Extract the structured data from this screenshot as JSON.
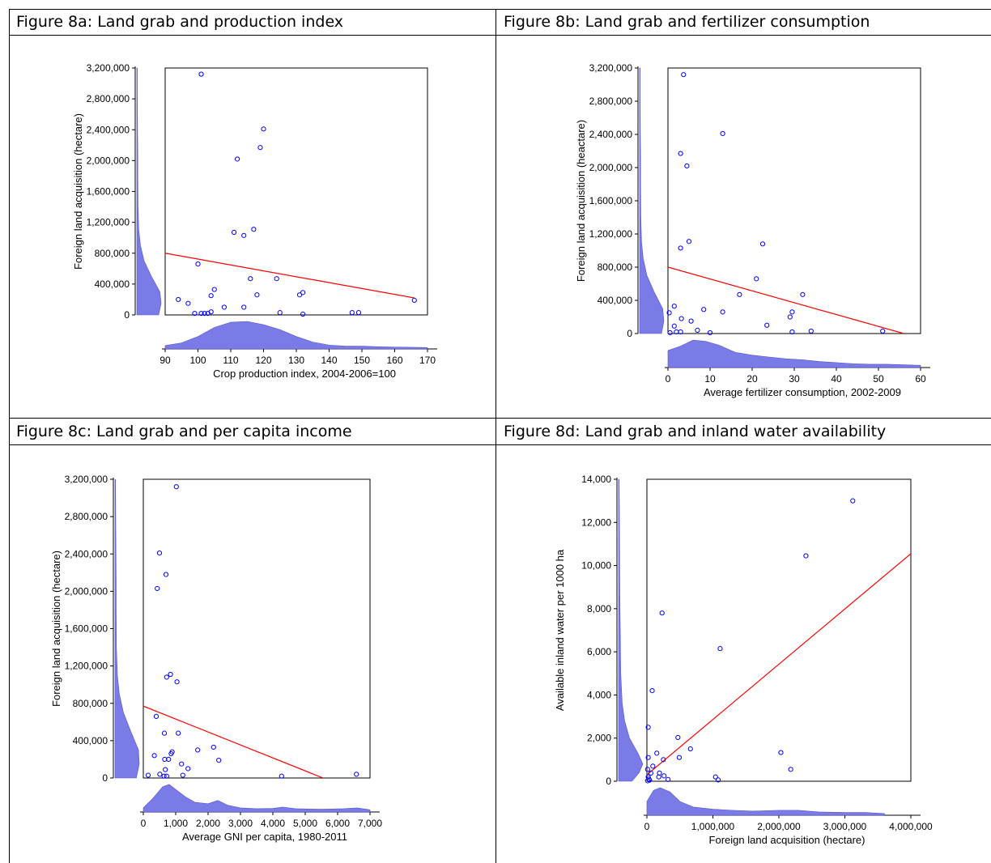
{
  "colors": {
    "point": "#0000ff",
    "fit": "#ff0000",
    "density": "#7b7be8",
    "density_stroke": "#5555cc",
    "axis": "#000000"
  },
  "chart_data": [
    {
      "id": "fig8a",
      "type": "scatter",
      "title": "Figure 8a: Land grab and production index",
      "xlabel": "Crop production index, 2004-2006=100",
      "ylabel": "Foreign land acquisition (hectare)",
      "xlim": [
        90,
        170
      ],
      "ylim": [
        0,
        3200000
      ],
      "xticks": [
        90,
        100,
        110,
        120,
        130,
        140,
        150,
        160,
        170
      ],
      "yticks": [
        0,
        400000,
        800000,
        1200000,
        1600000,
        2000000,
        2400000,
        2800000,
        3200000
      ],
      "xtick_labels": [
        "90",
        "100",
        "110",
        "120",
        "130",
        "140",
        "150",
        "160",
        "170"
      ],
      "ytick_labels": [
        "0",
        "400,000",
        "800,000",
        "1,200,000",
        "1,600,000",
        "2,000,000",
        "2,400,000",
        "2,800,000",
        "3,200,000"
      ],
      "points": [
        [
          101,
          3120000
        ],
        [
          120,
          2410000
        ],
        [
          119,
          2170000
        ],
        [
          112,
          2020000
        ],
        [
          111,
          1070000
        ],
        [
          117,
          1110000
        ],
        [
          114,
          1030000
        ],
        [
          100,
          660000
        ],
        [
          116,
          470000
        ],
        [
          124,
          470000
        ],
        [
          105,
          330000
        ],
        [
          104,
          250000
        ],
        [
          118,
          260000
        ],
        [
          131,
          260000
        ],
        [
          132,
          290000
        ],
        [
          94,
          200000
        ],
        [
          97,
          150000
        ],
        [
          108,
          100000
        ],
        [
          114,
          100000
        ],
        [
          166,
          190000
        ],
        [
          99,
          20000
        ],
        [
          101,
          20000
        ],
        [
          102,
          20000
        ],
        [
          103,
          20000
        ],
        [
          104,
          40000
        ],
        [
          125,
          30000
        ],
        [
          132,
          10000
        ],
        [
          147,
          30000
        ],
        [
          149,
          30000
        ]
      ],
      "fit": [
        [
          90,
          800000
        ],
        [
          166,
          220000
        ]
      ],
      "x_density": [
        [
          90,
          0.12
        ],
        [
          95,
          0.22
        ],
        [
          100,
          0.45
        ],
        [
          105,
          0.78
        ],
        [
          110,
          0.97
        ],
        [
          115,
          1.0
        ],
        [
          120,
          0.88
        ],
        [
          125,
          0.7
        ],
        [
          130,
          0.45
        ],
        [
          135,
          0.25
        ],
        [
          140,
          0.14
        ],
        [
          145,
          0.1
        ],
        [
          150,
          0.1
        ],
        [
          155,
          0.08
        ],
        [
          160,
          0.07
        ],
        [
          165,
          0.06
        ],
        [
          170,
          0.05
        ]
      ],
      "y_density": [
        [
          0,
          0.9
        ],
        [
          150000,
          1.0
        ],
        [
          300000,
          0.95
        ],
        [
          500000,
          0.6
        ],
        [
          700000,
          0.3
        ],
        [
          900000,
          0.15
        ],
        [
          1100000,
          0.08
        ],
        [
          1400000,
          0.05
        ],
        [
          1800000,
          0.04
        ],
        [
          2100000,
          0.04
        ],
        [
          2400000,
          0.03
        ],
        [
          2800000,
          0.02
        ],
        [
          3200000,
          0.02
        ]
      ],
      "layout": "8a"
    },
    {
      "id": "fig8b",
      "type": "scatter",
      "title": "Figure 8b: Land grab and fertilizer consumption",
      "xlabel": "Average fertilizer consumption, 2002-2009",
      "ylabel": "Foreign land acquisition (heactare)",
      "xlim": [
        0,
        60
      ],
      "ylim": [
        0,
        3200000
      ],
      "xticks": [
        0,
        10,
        20,
        30,
        40,
        50,
        60
      ],
      "yticks": [
        0,
        400000,
        800000,
        1200000,
        1600000,
        2000000,
        2400000,
        2800000,
        3200000
      ],
      "xtick_labels": [
        "0",
        "10",
        "20",
        "30",
        "40",
        "50",
        "60"
      ],
      "ytick_labels": [
        "0",
        "400,000",
        "800,000",
        "1,200,000",
        "1,600,000",
        "2,000,000",
        "2,400,000",
        "2,800,000",
        "3,200,000"
      ],
      "points": [
        [
          3.7,
          3120000
        ],
        [
          13,
          2410000
        ],
        [
          3,
          2170000
        ],
        [
          4.5,
          2020000
        ],
        [
          5,
          1110000
        ],
        [
          22.5,
          1080000
        ],
        [
          3,
          1030000
        ],
        [
          21,
          660000
        ],
        [
          17,
          470000
        ],
        [
          32,
          470000
        ],
        [
          8.5,
          290000
        ],
        [
          13,
          260000
        ],
        [
          29.5,
          260000
        ],
        [
          29,
          200000
        ],
        [
          1.5,
          330000
        ],
        [
          0.3,
          250000
        ],
        [
          3.2,
          180000
        ],
        [
          5.5,
          150000
        ],
        [
          1.5,
          90000
        ],
        [
          7,
          40000
        ],
        [
          2,
          20000
        ],
        [
          3,
          20000
        ],
        [
          0.5,
          10000
        ],
        [
          10,
          10000
        ],
        [
          23.5,
          100000
        ],
        [
          29.5,
          20000
        ],
        [
          34,
          30000
        ],
        [
          51,
          30000
        ]
      ],
      "fit": [
        [
          0,
          800000
        ],
        [
          56,
          0
        ]
      ],
      "x_density": [
        [
          0,
          0.62
        ],
        [
          3,
          0.78
        ],
        [
          6,
          1.0
        ],
        [
          9,
          0.95
        ],
        [
          12,
          0.82
        ],
        [
          16,
          0.55
        ],
        [
          20,
          0.45
        ],
        [
          24,
          0.38
        ],
        [
          28,
          0.32
        ],
        [
          32,
          0.28
        ],
        [
          36,
          0.22
        ],
        [
          40,
          0.18
        ],
        [
          44,
          0.14
        ],
        [
          48,
          0.12
        ],
        [
          52,
          0.12
        ],
        [
          56,
          0.1
        ],
        [
          60,
          0.08
        ]
      ],
      "y_density": [
        [
          0,
          0.9
        ],
        [
          150000,
          1.0
        ],
        [
          300000,
          0.95
        ],
        [
          500000,
          0.6
        ],
        [
          700000,
          0.3
        ],
        [
          900000,
          0.15
        ],
        [
          1100000,
          0.08
        ],
        [
          1400000,
          0.05
        ],
        [
          1800000,
          0.04
        ],
        [
          2100000,
          0.04
        ],
        [
          2400000,
          0.03
        ],
        [
          2800000,
          0.02
        ],
        [
          3200000,
          0.02
        ]
      ],
      "layout": "8b"
    },
    {
      "id": "fig8c",
      "type": "scatter",
      "title": "Figure 8c: Land grab and per capita income",
      "xlabel": "Average GNI per capita, 1980-2011",
      "ylabel": "Foreign land acquisition (hectare)",
      "xlim": [
        0,
        7000
      ],
      "ylim": [
        0,
        3200000
      ],
      "xticks": [
        0,
        1000,
        2000,
        3000,
        4000,
        5000,
        6000,
        7000
      ],
      "yticks": [
        0,
        400000,
        800000,
        1200000,
        1600000,
        2000000,
        2400000,
        2800000,
        3200000
      ],
      "xtick_labels": [
        "0",
        "1,000",
        "2,000",
        "3,000",
        "4,000",
        "5,000",
        "6,000",
        "7,000"
      ],
      "ytick_labels": [
        "0",
        "400,000",
        "800,000",
        "1,200,000",
        "1,600,000",
        "2,000,000",
        "2,400,000",
        "2,800,000",
        "3,200,000"
      ],
      "points": [
        [
          1020,
          3120000
        ],
        [
          500,
          2410000
        ],
        [
          700,
          2180000
        ],
        [
          430,
          2030000
        ],
        [
          840,
          1110000
        ],
        [
          720,
          1080000
        ],
        [
          1040,
          1030000
        ],
        [
          400,
          660000
        ],
        [
          650,
          480000
        ],
        [
          1080,
          480000
        ],
        [
          1680,
          300000
        ],
        [
          2170,
          330000
        ],
        [
          2330,
          190000
        ],
        [
          890,
          280000
        ],
        [
          860,
          260000
        ],
        [
          340,
          240000
        ],
        [
          660,
          200000
        ],
        [
          780,
          200000
        ],
        [
          1180,
          150000
        ],
        [
          1380,
          100000
        ],
        [
          680,
          90000
        ],
        [
          150,
          30000
        ],
        [
          510,
          40000
        ],
        [
          640,
          20000
        ],
        [
          720,
          20000
        ],
        [
          1220,
          30000
        ],
        [
          4270,
          20000
        ],
        [
          6580,
          40000
        ]
      ],
      "fit": [
        [
          0,
          770000
        ],
        [
          5550,
          0
        ]
      ],
      "x_density": [
        [
          0,
          0.15
        ],
        [
          300,
          0.5
        ],
        [
          600,
          0.92
        ],
        [
          800,
          1.0
        ],
        [
          1000,
          0.82
        ],
        [
          1300,
          0.55
        ],
        [
          1600,
          0.35
        ],
        [
          2000,
          0.3
        ],
        [
          2300,
          0.42
        ],
        [
          2600,
          0.25
        ],
        [
          3000,
          0.15
        ],
        [
          3500,
          0.12
        ],
        [
          4000,
          0.13
        ],
        [
          4300,
          0.18
        ],
        [
          4700,
          0.12
        ],
        [
          5500,
          0.1
        ],
        [
          6200,
          0.12
        ],
        [
          6600,
          0.15
        ],
        [
          7000,
          0.08
        ]
      ],
      "y_density": [
        [
          0,
          0.88
        ],
        [
          150000,
          1.0
        ],
        [
          300000,
          0.97
        ],
        [
          500000,
          0.65
        ],
        [
          700000,
          0.35
        ],
        [
          900000,
          0.18
        ],
        [
          1100000,
          0.1
        ],
        [
          1400000,
          0.06
        ],
        [
          1800000,
          0.05
        ],
        [
          2100000,
          0.05
        ],
        [
          2400000,
          0.04
        ],
        [
          2800000,
          0.03
        ],
        [
          3200000,
          0.02
        ]
      ],
      "layout": "8c"
    },
    {
      "id": "fig8d",
      "type": "scatter",
      "title": "Figure 8d: Land grab and inland water availability",
      "xlabel": "Foreign land acquisition (hectare)",
      "ylabel": "Available inland water per 1000 ha",
      "xlim": [
        0,
        4000000
      ],
      "ylim": [
        0,
        14000
      ],
      "xticks": [
        0,
        1000000,
        2000000,
        3000000,
        4000000
      ],
      "yticks": [
        0,
        2000,
        4000,
        6000,
        8000,
        10000,
        12000,
        14000
      ],
      "xtick_labels": [
        "0",
        "1,000,000",
        "2,000,000",
        "3,000,000",
        "4,000,000"
      ],
      "ytick_labels": [
        "0",
        "2,000",
        "4,000",
        "6,000",
        "8,000",
        "10,000",
        "12,000",
        "14,000"
      ],
      "points": [
        [
          3120000,
          13000
        ],
        [
          2410000,
          10450
        ],
        [
          230000,
          7800
        ],
        [
          1110000,
          6150
        ],
        [
          80000,
          4200
        ],
        [
          20000,
          2500
        ],
        [
          470000,
          2030
        ],
        [
          2030000,
          1330
        ],
        [
          2180000,
          550
        ],
        [
          660000,
          1500
        ],
        [
          490000,
          1100
        ],
        [
          1040000,
          200
        ],
        [
          1080000,
          60
        ],
        [
          150000,
          1300
        ],
        [
          20000,
          1100
        ],
        [
          250000,
          1000
        ],
        [
          90000,
          700
        ],
        [
          10000,
          550
        ],
        [
          60000,
          380
        ],
        [
          190000,
          380
        ],
        [
          260000,
          250
        ],
        [
          180000,
          200
        ],
        [
          320000,
          80
        ],
        [
          20000,
          200
        ],
        [
          30000,
          100
        ],
        [
          40000,
          50
        ],
        [
          10000,
          20
        ]
      ],
      "fit": [
        [
          0,
          300
        ],
        [
          4000000,
          10550
        ]
      ],
      "x_density": [
        [
          0,
          0.5
        ],
        [
          100000,
          0.9
        ],
        [
          200000,
          1.0
        ],
        [
          350000,
          0.85
        ],
        [
          500000,
          0.5
        ],
        [
          700000,
          0.3
        ],
        [
          1000000,
          0.22
        ],
        [
          1300000,
          0.18
        ],
        [
          1600000,
          0.15
        ],
        [
          2000000,
          0.18
        ],
        [
          2300000,
          0.18
        ],
        [
          2600000,
          0.12
        ],
        [
          3000000,
          0.1
        ],
        [
          3300000,
          0.1
        ],
        [
          3600000,
          0.06
        ]
      ],
      "y_density": [
        [
          0,
          0.55
        ],
        [
          400,
          0.85
        ],
        [
          800,
          1.0
        ],
        [
          1300,
          0.8
        ],
        [
          2000,
          0.45
        ],
        [
          2800,
          0.25
        ],
        [
          3600,
          0.15
        ],
        [
          5000,
          0.09
        ],
        [
          7000,
          0.07
        ],
        [
          9000,
          0.05
        ],
        [
          11000,
          0.04
        ],
        [
          13000,
          0.03
        ],
        [
          14000,
          0.02
        ]
      ],
      "layout": "8d"
    }
  ]
}
